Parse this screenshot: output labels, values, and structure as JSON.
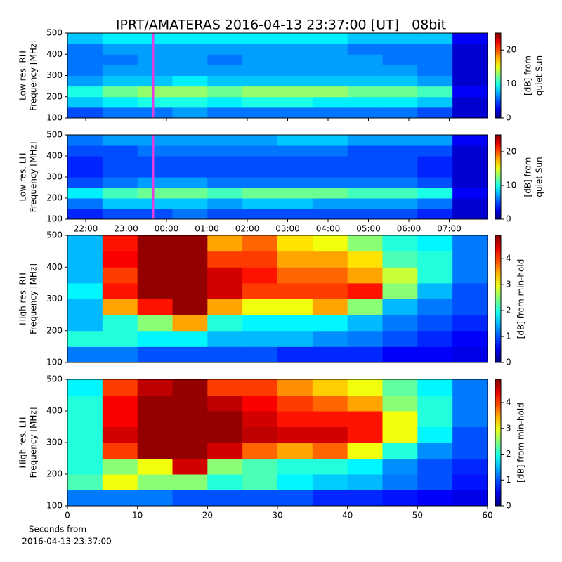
{
  "chart_data": [
    {
      "type": "heatmap",
      "title": "IPRT/AMATERAS 2016-04-13 23:37:00 [UT]   08bit",
      "ylabel": [
        "Low res. RH",
        "Frequency [MHz]"
      ],
      "colorbar_label": [
        "[dB] from",
        "quiet Sun"
      ],
      "colormap": "jet",
      "ylim": [
        100,
        500
      ],
      "yticks": [
        100,
        200,
        300,
        400,
        500
      ],
      "y": [
        100,
        150,
        200,
        250,
        300,
        350,
        400,
        450,
        500
      ],
      "zlim": [
        0,
        25
      ],
      "zticks": [
        0,
        10,
        20
      ],
      "z": [
        [
          5,
          6,
          6,
          7,
          6,
          6,
          6,
          6,
          6,
          6,
          5,
          2
        ],
        [
          8,
          9,
          10,
          10,
          9,
          10,
          10,
          9,
          9,
          9,
          8,
          2
        ],
        [
          10,
          12,
          13,
          13,
          12,
          13,
          13,
          13,
          12,
          12,
          11,
          3
        ],
        [
          7,
          8,
          8,
          9,
          8,
          8,
          8,
          8,
          8,
          8,
          7,
          2
        ],
        [
          6,
          7,
          7,
          7,
          7,
          7,
          7,
          7,
          7,
          7,
          6,
          2
        ],
        [
          6,
          6,
          7,
          7,
          6,
          7,
          7,
          7,
          7,
          6,
          6,
          2
        ],
        [
          6,
          7,
          7,
          7,
          7,
          7,
          7,
          7,
          6,
          6,
          6,
          2
        ],
        [
          8,
          9,
          9,
          9,
          9,
          9,
          9,
          9,
          8,
          8,
          8,
          3
        ]
      ]
    },
    {
      "type": "heatmap",
      "ylabel": [
        "Low res. LH",
        "Frequency [MHz]"
      ],
      "colorbar_label": [
        "[dB] from",
        "quiet Sun"
      ],
      "colormap": "jet",
      "ylim": [
        100,
        500
      ],
      "yticks": [
        100,
        200,
        300,
        400,
        500
      ],
      "y": [
        100,
        150,
        200,
        250,
        300,
        350,
        400,
        450,
        500
      ],
      "zlim": [
        0,
        25
      ],
      "zticks": [
        0,
        10,
        20
      ],
      "xticks": [
        "22:00",
        "23:00",
        "00:00",
        "01:00",
        "02:00",
        "03:00",
        "04:00",
        "05:00",
        "06:00",
        "07:00"
      ],
      "z": [
        [
          4,
          5,
          5,
          6,
          5,
          5,
          5,
          5,
          5,
          5,
          4,
          2
        ],
        [
          6,
          8,
          8,
          8,
          7,
          8,
          8,
          7,
          7,
          7,
          6,
          2
        ],
        [
          9,
          11,
          12,
          12,
          11,
          12,
          12,
          12,
          11,
          11,
          10,
          3
        ],
        [
          5,
          6,
          7,
          7,
          6,
          6,
          6,
          6,
          6,
          6,
          5,
          2
        ],
        [
          4,
          5,
          5,
          5,
          5,
          5,
          5,
          5,
          5,
          5,
          4,
          2
        ],
        [
          4,
          5,
          5,
          5,
          5,
          5,
          5,
          5,
          5,
          5,
          4,
          2
        ],
        [
          5,
          5,
          6,
          6,
          6,
          6,
          6,
          6,
          5,
          5,
          5,
          2
        ],
        [
          6,
          7,
          7,
          7,
          7,
          7,
          8,
          8,
          7,
          7,
          7,
          3
        ]
      ]
    },
    {
      "type": "heatmap",
      "ylabel": [
        "High res. RH",
        "Frequency [MHz]"
      ],
      "colorbar_label": [
        "[dB] from min-hold"
      ],
      "colormap": "jet",
      "ylim": [
        100,
        500
      ],
      "yticks": [
        100,
        200,
        300,
        400,
        500
      ],
      "y": [
        100,
        150,
        200,
        250,
        300,
        350,
        400,
        450,
        500
      ],
      "xlim": [
        0,
        60
      ],
      "x": [
        0,
        5,
        10,
        15,
        20,
        25,
        30,
        35,
        40,
        45,
        50,
        55,
        60
      ],
      "zlim": [
        0,
        4.9
      ],
      "zticks": [
        0,
        1,
        2,
        3,
        4
      ],
      "z": [
        [
          1.2,
          1.2,
          1.0,
          1.0,
          1.0,
          1.0,
          0.8,
          0.8,
          0.8,
          0.6,
          0.6,
          0.5
        ],
        [
          2.0,
          2.0,
          1.8,
          1.8,
          1.5,
          1.5,
          1.5,
          1.3,
          1.2,
          1.0,
          0.8,
          0.6
        ],
        [
          1.5,
          2.0,
          2.5,
          3.5,
          2.0,
          1.8,
          1.8,
          1.8,
          1.5,
          1.2,
          1.0,
          0.8
        ],
        [
          1.5,
          3.5,
          4.2,
          4.8,
          3.5,
          3.0,
          3.0,
          3.5,
          2.5,
          1.5,
          1.2,
          1.0
        ],
        [
          1.8,
          4.2,
          4.8,
          4.8,
          4.5,
          4.0,
          4.0,
          4.0,
          4.2,
          2.5,
          1.5,
          1.0
        ],
        [
          1.5,
          4.0,
          4.8,
          4.8,
          4.5,
          4.2,
          3.8,
          3.8,
          3.5,
          2.8,
          2.0,
          1.2
        ],
        [
          1.5,
          4.3,
          4.8,
          4.8,
          4.0,
          4.0,
          3.5,
          3.5,
          3.2,
          2.2,
          2.0,
          1.2
        ],
        [
          1.5,
          4.2,
          4.8,
          4.8,
          3.5,
          3.8,
          3.2,
          3.0,
          2.5,
          2.0,
          1.8,
          1.2
        ]
      ]
    },
    {
      "type": "heatmap",
      "ylabel": [
        "High res. LH",
        "Frequency [MHz]"
      ],
      "colorbar_label": [
        "[dB] from min-hold"
      ],
      "colormap": "jet",
      "ylim": [
        100,
        500
      ],
      "yticks": [
        100,
        200,
        300,
        400,
        500
      ],
      "y": [
        100,
        150,
        200,
        250,
        300,
        350,
        400,
        450,
        500
      ],
      "xlim": [
        0,
        60
      ],
      "x": [
        0,
        5,
        10,
        15,
        20,
        25,
        30,
        35,
        40,
        45,
        50,
        55,
        60
      ],
      "xticks": [
        0,
        10,
        20,
        30,
        40,
        50,
        60
      ],
      "xlabel": [
        "Seconds from",
        "2016-04-13 23:37:00"
      ],
      "zlim": [
        0,
        4.9
      ],
      "zticks": [
        0,
        1,
        2,
        3,
        4
      ],
      "z": [
        [
          1.2,
          1.2,
          1.2,
          1.0,
          1.0,
          1.0,
          1.0,
          0.8,
          0.8,
          0.7,
          0.6,
          0.5
        ],
        [
          2.2,
          3.0,
          2.5,
          2.5,
          2.0,
          2.2,
          1.8,
          1.6,
          1.5,
          1.2,
          1.0,
          0.7
        ],
        [
          2.0,
          2.5,
          3.0,
          4.5,
          2.5,
          2.2,
          2.0,
          2.0,
          1.8,
          1.3,
          1.0,
          0.8
        ],
        [
          2.0,
          4.0,
          4.8,
          4.8,
          4.5,
          3.8,
          3.5,
          3.8,
          3.0,
          2.0,
          1.3,
          1.0
        ],
        [
          2.0,
          4.5,
          4.8,
          4.8,
          4.8,
          4.6,
          4.5,
          4.5,
          4.2,
          3.0,
          1.8,
          1.0
        ],
        [
          2.0,
          4.3,
          4.8,
          4.8,
          4.8,
          4.5,
          4.2,
          4.2,
          4.2,
          3.0,
          2.0,
          1.2
        ],
        [
          2.0,
          4.3,
          4.8,
          4.8,
          4.6,
          4.3,
          4.0,
          3.8,
          3.5,
          2.5,
          2.0,
          1.2
        ],
        [
          1.8,
          4.0,
          4.6,
          4.8,
          4.0,
          4.0,
          3.6,
          3.3,
          3.0,
          2.3,
          1.8,
          1.2
        ]
      ]
    }
  ]
}
